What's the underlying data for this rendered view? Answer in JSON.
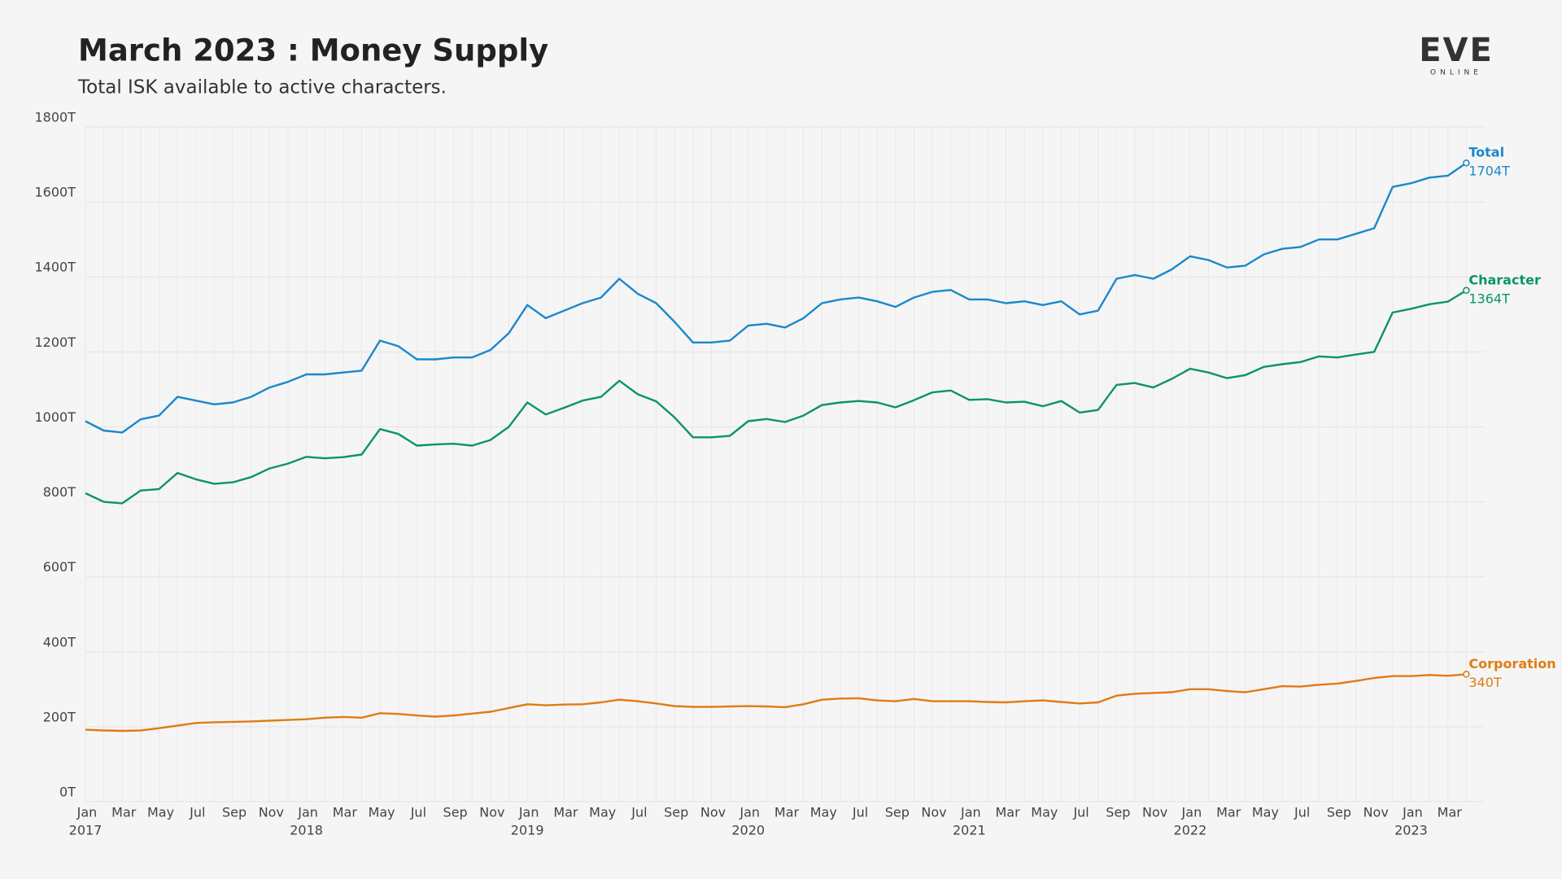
{
  "chart_data": {
    "type": "line",
    "title": "March 2023 : Money Supply",
    "subtitle": "Total ISK available to active characters.",
    "logo": {
      "text": "EVE",
      "sub": "ONLINE"
    },
    "x": [
      "2017-01",
      "2017-02",
      "2017-03",
      "2017-04",
      "2017-05",
      "2017-06",
      "2017-07",
      "2017-08",
      "2017-09",
      "2017-10",
      "2017-11",
      "2017-12",
      "2018-01",
      "2018-02",
      "2018-03",
      "2018-04",
      "2018-05",
      "2018-06",
      "2018-07",
      "2018-08",
      "2018-09",
      "2018-10",
      "2018-11",
      "2018-12",
      "2019-01",
      "2019-02",
      "2019-03",
      "2019-04",
      "2019-05",
      "2019-06",
      "2019-07",
      "2019-08",
      "2019-09",
      "2019-10",
      "2019-11",
      "2019-12",
      "2020-01",
      "2020-02",
      "2020-03",
      "2020-04",
      "2020-05",
      "2020-06",
      "2020-07",
      "2020-08",
      "2020-09",
      "2020-10",
      "2020-11",
      "2020-12",
      "2021-01",
      "2021-02",
      "2021-03",
      "2021-04",
      "2021-05",
      "2021-06",
      "2021-07",
      "2021-08",
      "2021-09",
      "2021-10",
      "2021-11",
      "2021-12",
      "2022-01",
      "2022-02",
      "2022-03",
      "2022-04",
      "2022-05",
      "2022-06",
      "2022-07",
      "2022-08",
      "2022-09",
      "2022-10",
      "2022-11",
      "2022-12",
      "2023-01",
      "2023-02",
      "2023-03",
      "2023-04"
    ],
    "xlim": [
      "2017-01",
      "2023-05"
    ],
    "xticks": [
      {
        "value": "2017-01",
        "label": "Jan"
      },
      {
        "value": "2017-03",
        "label": "Mar"
      },
      {
        "value": "2017-05",
        "label": "May"
      },
      {
        "value": "2017-07",
        "label": "Jul"
      },
      {
        "value": "2017-09",
        "label": "Sep"
      },
      {
        "value": "2017-11",
        "label": "Nov"
      },
      {
        "value": "2018-01",
        "label": "Jan"
      },
      {
        "value": "2018-03",
        "label": "Mar"
      },
      {
        "value": "2018-05",
        "label": "May"
      },
      {
        "value": "2018-07",
        "label": "Jul"
      },
      {
        "value": "2018-09",
        "label": "Sep"
      },
      {
        "value": "2018-11",
        "label": "Nov"
      },
      {
        "value": "2019-01",
        "label": "Jan"
      },
      {
        "value": "2019-03",
        "label": "Mar"
      },
      {
        "value": "2019-05",
        "label": "May"
      },
      {
        "value": "2019-07",
        "label": "Jul"
      },
      {
        "value": "2019-09",
        "label": "Sep"
      },
      {
        "value": "2019-11",
        "label": "Nov"
      },
      {
        "value": "2020-01",
        "label": "Jan"
      },
      {
        "value": "2020-03",
        "label": "Mar"
      },
      {
        "value": "2020-05",
        "label": "May"
      },
      {
        "value": "2020-07",
        "label": "Jul"
      },
      {
        "value": "2020-09",
        "label": "Sep"
      },
      {
        "value": "2020-11",
        "label": "Nov"
      },
      {
        "value": "2021-01",
        "label": "Jan"
      },
      {
        "value": "2021-03",
        "label": "Mar"
      },
      {
        "value": "2021-05",
        "label": "May"
      },
      {
        "value": "2021-07",
        "label": "Jul"
      },
      {
        "value": "2021-09",
        "label": "Sep"
      },
      {
        "value": "2021-11",
        "label": "Nov"
      },
      {
        "value": "2022-01",
        "label": "Jan"
      },
      {
        "value": "2022-03",
        "label": "Mar"
      },
      {
        "value": "2022-05",
        "label": "May"
      },
      {
        "value": "2022-07",
        "label": "Jul"
      },
      {
        "value": "2022-09",
        "label": "Sep"
      },
      {
        "value": "2022-11",
        "label": "Nov"
      },
      {
        "value": "2023-01",
        "label": "Jan"
      },
      {
        "value": "2023-03",
        "label": "Mar"
      }
    ],
    "xtick_years": [
      {
        "value": "2017-01",
        "label": "2017"
      },
      {
        "value": "2018-01",
        "label": "2018"
      },
      {
        "value": "2019-01",
        "label": "2019"
      },
      {
        "value": "2020-01",
        "label": "2020"
      },
      {
        "value": "2021-01",
        "label": "2021"
      },
      {
        "value": "2022-01",
        "label": "2022"
      },
      {
        "value": "2023-01",
        "label": "2023"
      }
    ],
    "ylim": [
      0,
      1800
    ],
    "yticks": [
      {
        "value": 0,
        "label": "0T"
      },
      {
        "value": 200,
        "label": "200T"
      },
      {
        "value": 400,
        "label": "400T"
      },
      {
        "value": 600,
        "label": "600T"
      },
      {
        "value": 800,
        "label": "800T"
      },
      {
        "value": 1000,
        "label": "1000T"
      },
      {
        "value": 1200,
        "label": "1200T"
      },
      {
        "value": 1400,
        "label": "1400T"
      },
      {
        "value": 1600,
        "label": "1600T"
      },
      {
        "value": 1800,
        "label": "1800T"
      }
    ],
    "grid": true,
    "series": [
      {
        "name": "Total",
        "color": "#1a88cc",
        "end_value_label": "1704T",
        "values": [
          1015,
          990,
          985,
          1020,
          1030,
          1080,
          1070,
          1060,
          1065,
          1080,
          1105,
          1120,
          1140,
          1140,
          1145,
          1150,
          1230,
          1215,
          1180,
          1180,
          1185,
          1185,
          1205,
          1250,
          1325,
          1290,
          1310,
          1330,
          1345,
          1395,
          1355,
          1330,
          1280,
          1225,
          1225,
          1230,
          1270,
          1275,
          1265,
          1290,
          1330,
          1340,
          1345,
          1335,
          1320,
          1345,
          1360,
          1365,
          1340,
          1340,
          1330,
          1335,
          1325,
          1335,
          1300,
          1310,
          1395,
          1405,
          1395,
          1420,
          1455,
          1445,
          1425,
          1430,
          1460,
          1475,
          1480,
          1500,
          1500,
          1515,
          1530,
          1640,
          1650,
          1665,
          1670,
          1704
        ]
      },
      {
        "name": "Character",
        "color": "#0b9466",
        "end_value_label": "1364T",
        "values": [
          823,
          800,
          796,
          830,
          834,
          877,
          860,
          848,
          852,
          866,
          889,
          902,
          920,
          916,
          919,
          926,
          994,
          981,
          950,
          953,
          955,
          950,
          965,
          1000,
          1065,
          1033,
          1051,
          1070,
          1080,
          1123,
          1087,
          1068,
          1025,
          972,
          972,
          976,
          1015,
          1021,
          1013,
          1030,
          1058,
          1065,
          1069,
          1065,
          1052,
          1071,
          1092,
          1097,
          1072,
          1074,
          1065,
          1067,
          1055,
          1069,
          1038,
          1045,
          1112,
          1117,
          1105,
          1128,
          1155,
          1145,
          1130,
          1138,
          1160,
          1167,
          1173,
          1188,
          1185,
          1193,
          1200,
          1305,
          1315,
          1327,
          1334,
          1364
        ]
      },
      {
        "name": "Corporation",
        "color": "#e07c12",
        "end_value_label": "340T",
        "values": [
          192,
          190,
          189,
          190,
          196,
          203,
          210,
          212,
          213,
          214,
          216,
          218,
          220,
          224,
          226,
          224,
          236,
          234,
          230,
          227,
          230,
          235,
          240,
          250,
          260,
          257,
          259,
          260,
          265,
          272,
          268,
          262,
          255,
          253,
          253,
          254,
          255,
          254,
          252,
          260,
          272,
          275,
          276,
          270,
          268,
          274,
          268,
          268,
          268,
          266,
          265,
          268,
          270,
          266,
          262,
          265,
          283,
          288,
          290,
          292,
          300,
          300,
          295,
          292,
          300,
          308,
          307,
          312,
          315,
          322,
          330,
          335,
          335,
          338,
          336,
          340
        ]
      }
    ]
  }
}
